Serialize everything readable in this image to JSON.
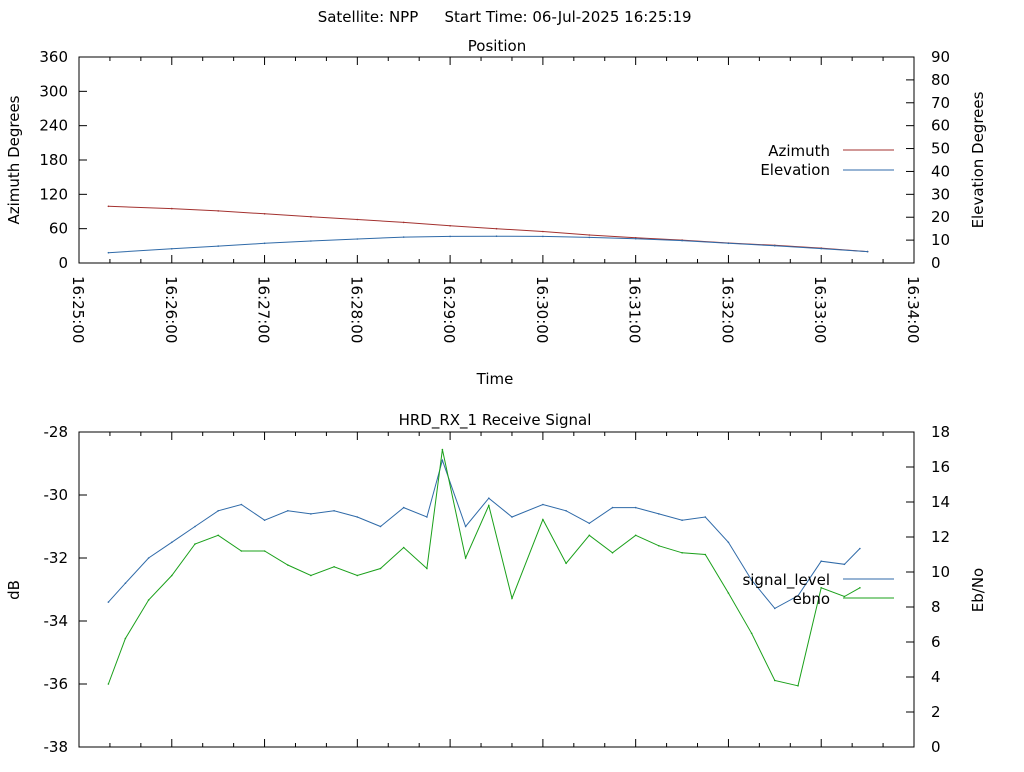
{
  "header": {
    "satellite_label": "Satellite: NPP",
    "start_label": "Start Time: 06-Jul-2025 16:25:19"
  },
  "chart_data": [
    {
      "type": "line",
      "title": "Position",
      "xlabel": "Time",
      "ylabel": "Azimuth Degrees",
      "y2label": "Elevation Degrees",
      "xlim": [
        "16:25:00",
        "16:34:00"
      ],
      "xticks": [
        "16:25:00",
        "16:26:00",
        "16:27:00",
        "16:28:00",
        "16:29:00",
        "16:30:00",
        "16:31:00",
        "16:32:00",
        "16:33:00",
        "16:34:00"
      ],
      "ylim": [
        0,
        360
      ],
      "yticks": [
        0,
        60,
        120,
        180,
        240,
        300,
        360
      ],
      "y2lim": [
        0,
        90
      ],
      "y2ticks": [
        0,
        10,
        20,
        30,
        40,
        50,
        60,
        70,
        80,
        90
      ],
      "grid": false,
      "legend": "right",
      "series": [
        {
          "name": "Azimuth",
          "axis": "y",
          "color": "#a3312f",
          "x": [
            "16:25:19",
            "16:26:00",
            "16:26:30",
            "16:27:00",
            "16:27:30",
            "16:28:00",
            "16:28:30",
            "16:29:00",
            "16:29:30",
            "16:30:00",
            "16:30:30",
            "16:31:00",
            "16:31:30",
            "16:32:00",
            "16:32:30",
            "16:33:00",
            "16:33:30"
          ],
          "values": [
            99,
            95,
            91,
            86,
            81,
            76,
            71,
            65,
            60,
            55,
            49,
            44,
            40,
            35,
            31,
            26,
            20
          ]
        },
        {
          "name": "Elevation",
          "axis": "y2",
          "color": "#2f6aa8",
          "x": [
            "16:25:19",
            "16:26:00",
            "16:26:30",
            "16:27:00",
            "16:27:30",
            "16:28:00",
            "16:28:30",
            "16:29:00",
            "16:29:30",
            "16:30:00",
            "16:30:30",
            "16:31:00",
            "16:31:30",
            "16:32:00",
            "16:32:30",
            "16:33:00",
            "16:33:30"
          ],
          "values": [
            4.5,
            6.2,
            7.4,
            8.6,
            9.6,
            10.5,
            11.3,
            11.6,
            11.7,
            11.6,
            11.2,
            10.6,
            9.8,
            8.6,
            7.5,
            6.3,
            5.0
          ]
        }
      ]
    },
    {
      "type": "line",
      "title": "HRD_RX_1 Receive Signal",
      "xlabel": "",
      "ylabel": "dB",
      "y2label": "Eb/No",
      "xlim": [
        "16:25:00",
        "16:34:00"
      ],
      "ylim": [
        -38,
        -28
      ],
      "yticks": [
        -38,
        -36,
        -34,
        -32,
        -30,
        -28
      ],
      "y2lim": [
        0,
        18
      ],
      "y2ticks": [
        0,
        2,
        4,
        6,
        8,
        10,
        12,
        14,
        16,
        18
      ],
      "grid": false,
      "legend": "right",
      "series": [
        {
          "name": "signal_level",
          "axis": "y",
          "color": "#2f6aa8",
          "x": [
            "16:25:19",
            "16:25:30",
            "16:25:45",
            "16:26:00",
            "16:26:15",
            "16:26:30",
            "16:26:45",
            "16:27:00",
            "16:27:15",
            "16:27:30",
            "16:27:45",
            "16:28:00",
            "16:28:15",
            "16:28:30",
            "16:28:45",
            "16:28:55",
            "16:29:10",
            "16:29:25",
            "16:29:40",
            "16:30:00",
            "16:30:15",
            "16:30:30",
            "16:30:45",
            "16:31:00",
            "16:31:15",
            "16:31:30",
            "16:31:45",
            "16:32:00",
            "16:32:15",
            "16:32:30",
            "16:32:45",
            "16:33:00",
            "16:33:15",
            "16:33:25"
          ],
          "values": [
            -33.4,
            -32.8,
            -32.0,
            -31.5,
            -31.0,
            -30.5,
            -30.3,
            -30.8,
            -30.5,
            -30.6,
            -30.5,
            -30.7,
            -31.0,
            -30.4,
            -30.7,
            -28.9,
            -31.0,
            -30.1,
            -30.7,
            -30.3,
            -30.5,
            -30.9,
            -30.4,
            -30.4,
            -30.6,
            -30.8,
            -30.7,
            -31.5,
            -32.7,
            -33.6,
            -33.2,
            -32.1,
            -32.2,
            -31.7
          ]
        },
        {
          "name": "ebno",
          "axis": "y2",
          "color": "#1aa01a",
          "x": [
            "16:25:19",
            "16:25:30",
            "16:25:45",
            "16:26:00",
            "16:26:15",
            "16:26:30",
            "16:26:45",
            "16:27:00",
            "16:27:15",
            "16:27:30",
            "16:27:45",
            "16:28:00",
            "16:28:15",
            "16:28:30",
            "16:28:45",
            "16:28:55",
            "16:29:10",
            "16:29:25",
            "16:29:40",
            "16:30:00",
            "16:30:15",
            "16:30:30",
            "16:30:45",
            "16:31:00",
            "16:31:15",
            "16:31:30",
            "16:31:45",
            "16:32:00",
            "16:32:15",
            "16:32:30",
            "16:32:45",
            "16:33:00",
            "16:33:15",
            "16:33:25"
          ],
          "values": [
            3.6,
            6.2,
            8.4,
            9.8,
            11.6,
            12.1,
            11.2,
            11.2,
            10.4,
            9.8,
            10.3,
            9.8,
            10.2,
            11.4,
            10.2,
            17.0,
            10.8,
            13.8,
            8.5,
            13.0,
            10.5,
            12.1,
            11.1,
            12.1,
            11.5,
            11.1,
            11.0,
            8.8,
            6.5,
            3.8,
            3.5,
            9.1,
            8.6,
            9.1
          ]
        }
      ]
    }
  ]
}
